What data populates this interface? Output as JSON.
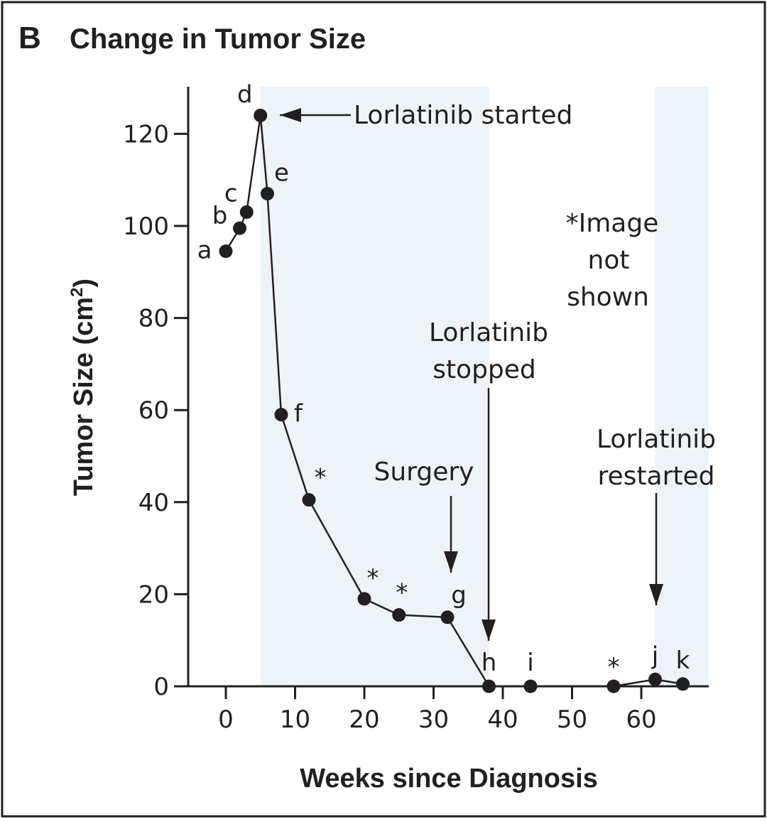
{
  "panel": {
    "letter": "B",
    "title": "Change in Tumor Size"
  },
  "colors": {
    "frame": "#231f20",
    "shade": "#eef3f8",
    "ink": "#231f20"
  },
  "chart_data": {
    "type": "line",
    "title": "Change in Tumor Size",
    "xlabel": "Weeks since Diagnosis",
    "ylabel_text": "Tumor Size (cm",
    "ylabel_sup": "2",
    "ylabel_close": ")",
    "xlim": [
      -6,
      70
    ],
    "ylim": [
      0,
      130
    ],
    "xticks": [
      0,
      10,
      20,
      30,
      40,
      50,
      60
    ],
    "yticks": [
      0,
      20,
      40,
      60,
      80,
      100,
      120
    ],
    "grid": false,
    "shaded_regions": [
      {
        "from": 5,
        "to": 38
      },
      {
        "from": 62,
        "to": 70
      }
    ],
    "series": [
      {
        "points": [
          {
            "x": 0,
            "y": 94.5,
            "label": "a"
          },
          {
            "x": 2,
            "y": 99.5,
            "label": "b"
          },
          {
            "x": 3,
            "y": 103,
            "label": "c"
          },
          {
            "x": 5,
            "y": 124,
            "label": "d"
          },
          {
            "x": 6,
            "y": 107,
            "label": "e"
          },
          {
            "x": 8,
            "y": 59,
            "label": "f"
          },
          {
            "x": 12,
            "y": 40.5,
            "label": "*"
          },
          {
            "x": 20,
            "y": 19,
            "label": "*"
          },
          {
            "x": 25,
            "y": 15.5,
            "label": "*"
          },
          {
            "x": 32,
            "y": 15,
            "label": "g"
          },
          {
            "x": 38,
            "y": 0,
            "label": "h"
          },
          {
            "x": 44,
            "y": 0,
            "label": "i"
          },
          {
            "x": 56,
            "y": 0,
            "label": "*"
          },
          {
            "x": 62,
            "y": 1.5,
            "label": "j"
          },
          {
            "x": 66,
            "y": 0.5,
            "label": "k"
          }
        ]
      }
    ],
    "annotations": {
      "started": "Lorlatinib started",
      "surgery": "Surgery",
      "stopped_line1": "Lorlatinib",
      "stopped_line2": "stopped",
      "restarted_line1": "Lorlatinib",
      "restarted_line2": "restarted",
      "note_line1": "*Image",
      "note_line2": "not",
      "note_line3": "shown"
    }
  }
}
